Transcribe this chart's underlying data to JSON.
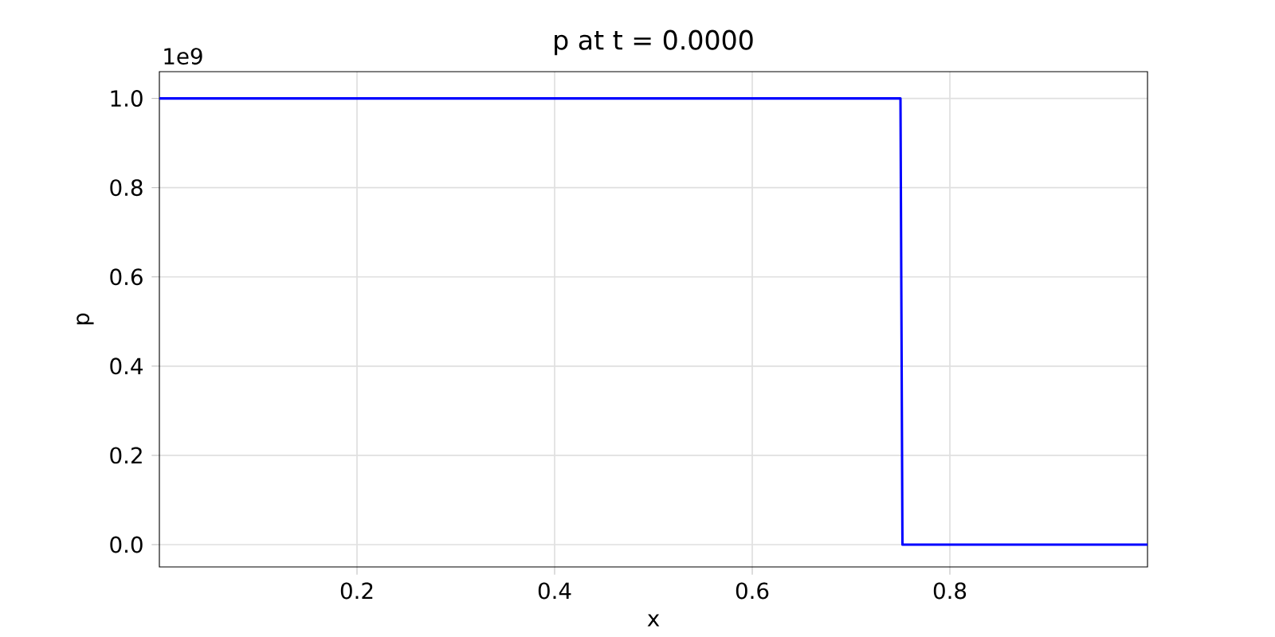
{
  "chart_data": {
    "type": "line",
    "title": "p at t = 0.0000",
    "xlabel": "x",
    "ylabel": "p",
    "annotations": [
      "1e9"
    ],
    "x": [
      0.0,
      0.75,
      0.752,
      1.0
    ],
    "series": [
      {
        "color": "#0000ff",
        "values": [
          1.0,
          1.0,
          0.0,
          0.0
        ]
      }
    ],
    "xlim": [
      0.0,
      1.0
    ],
    "xticks": [
      0.2,
      0.4,
      0.6,
      0.8
    ],
    "ylim": [
      -0.05,
      1.06
    ],
    "yticks": [
      {
        "value": 0,
        "label": "0.0"
      },
      0.2,
      0.4,
      0.6,
      0.8,
      {
        "value": 1,
        "label": "1.0"
      }
    ],
    "grid": true,
    "marker": "none",
    "line_style": "solid"
  }
}
